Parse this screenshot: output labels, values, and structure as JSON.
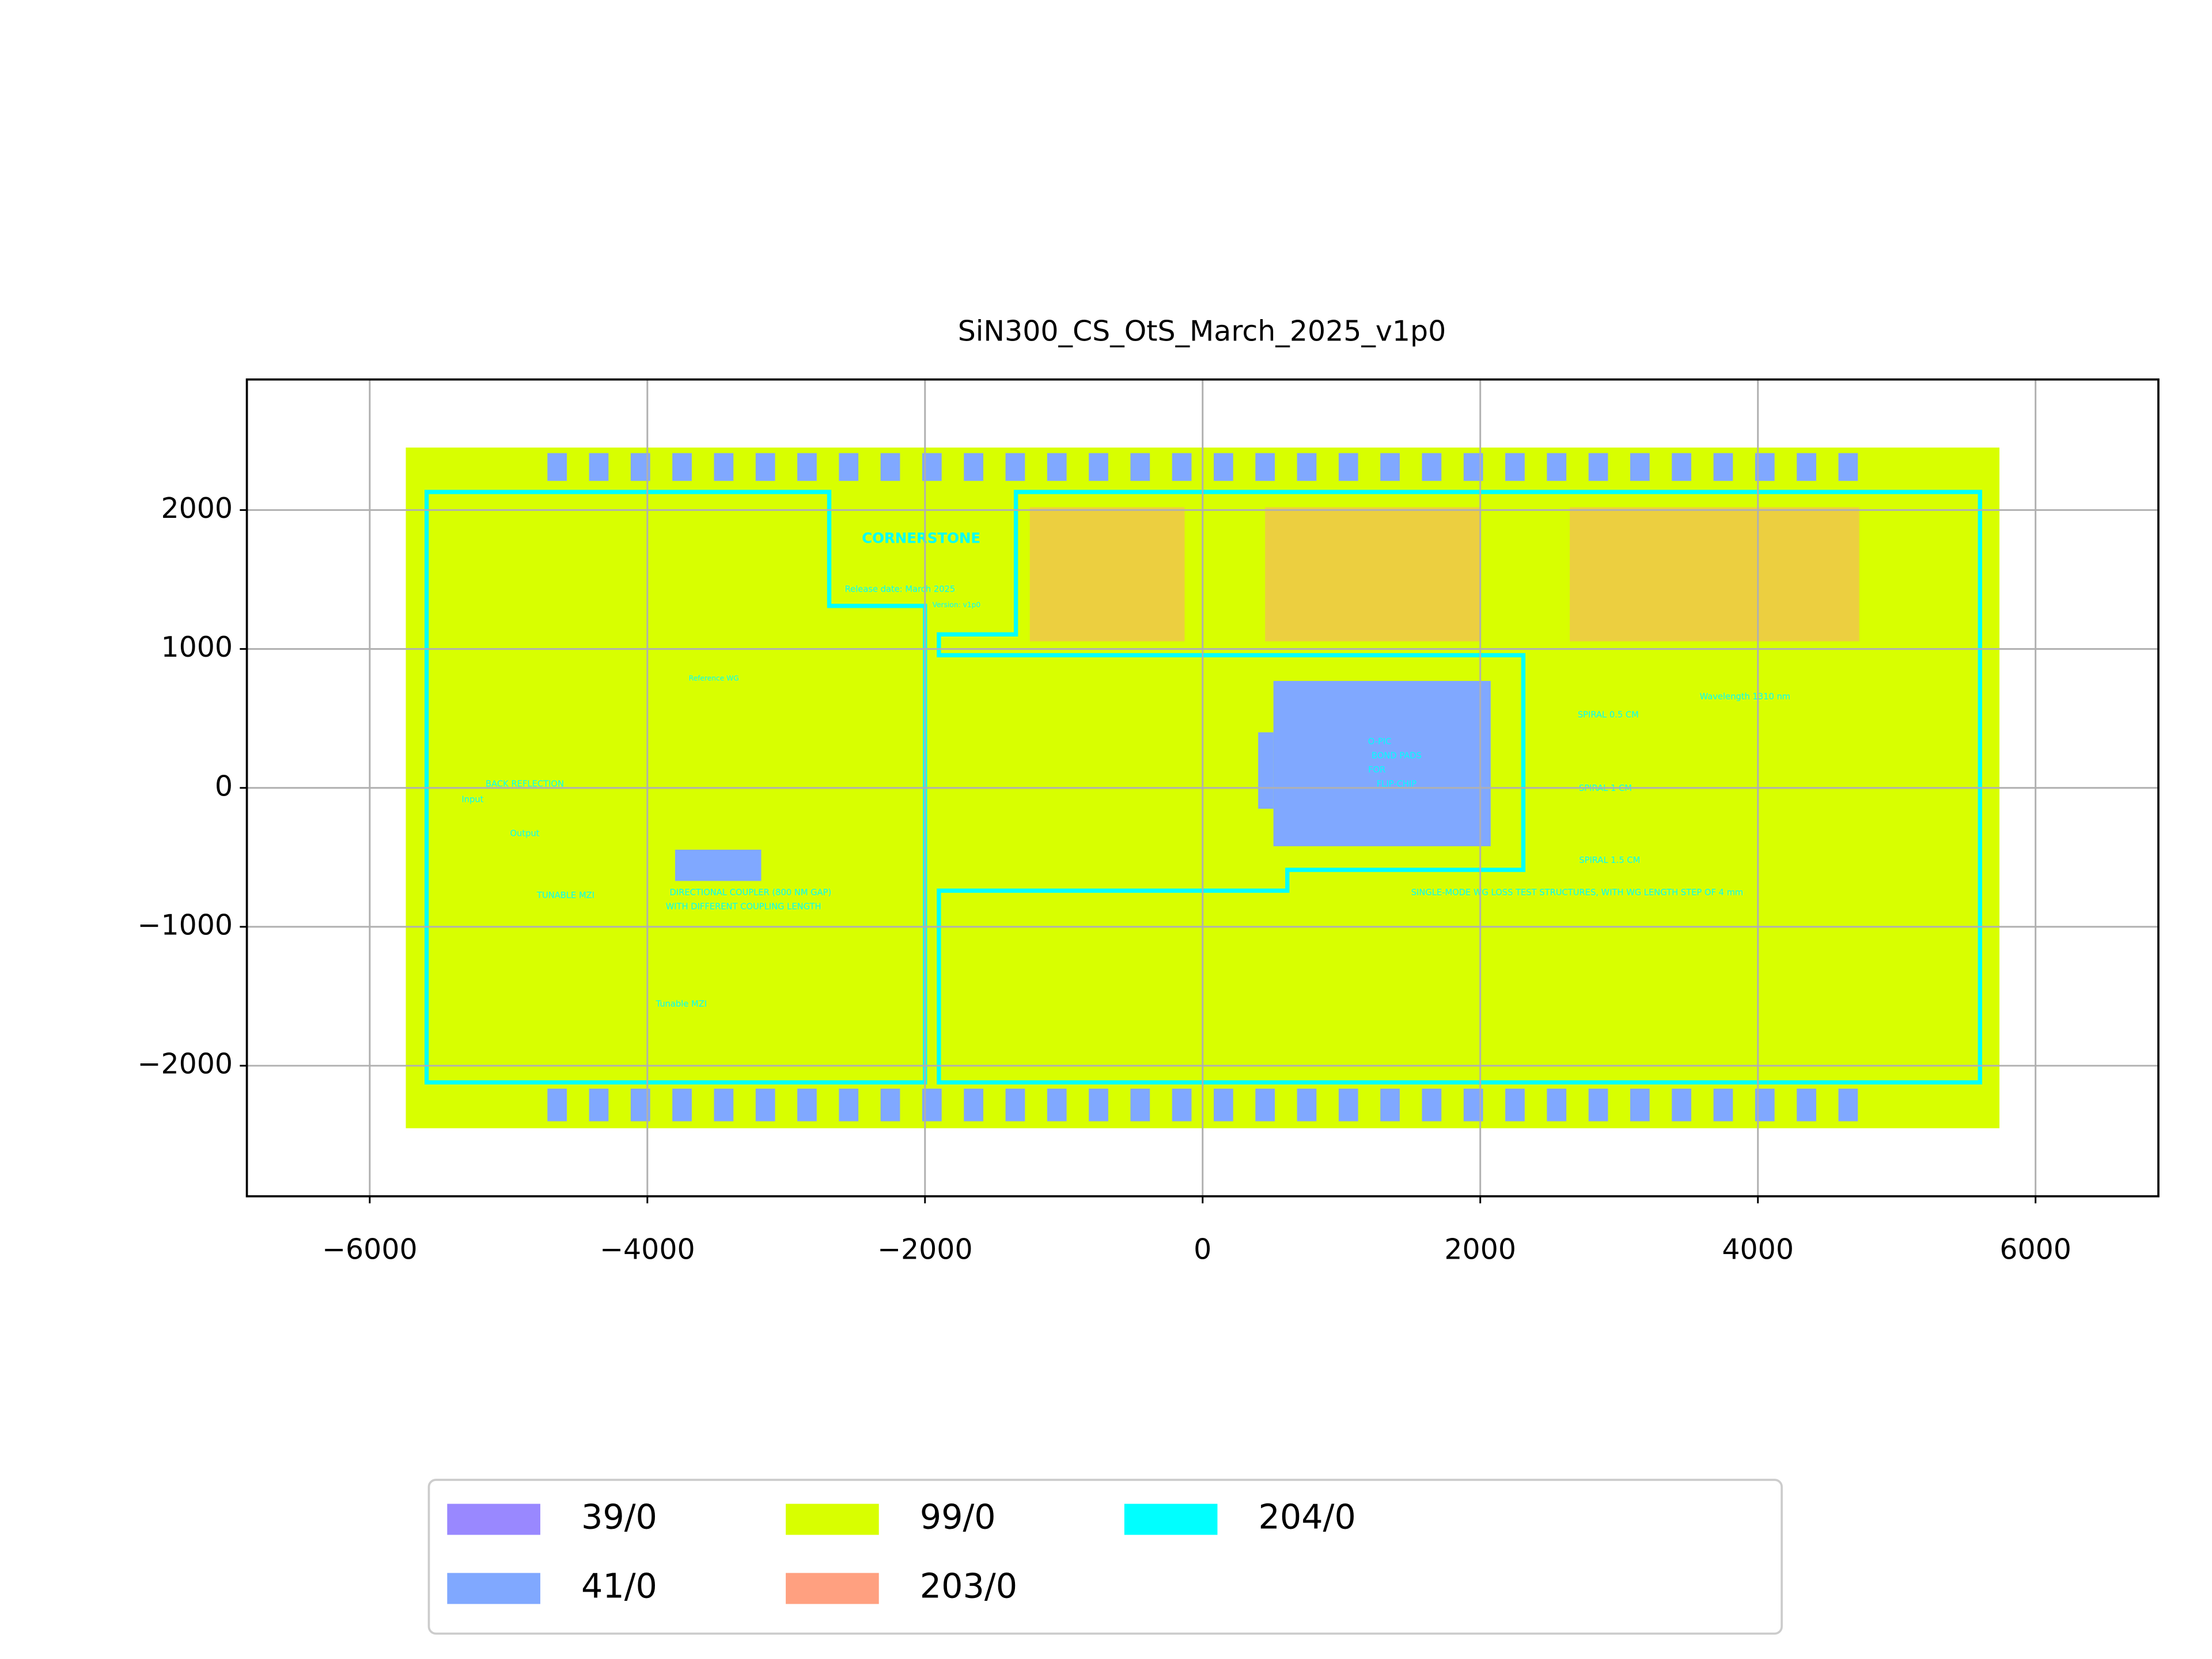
{
  "chart_data": {
    "type": "layout",
    "title": "SiN300_CS_OtS_March_2025_v1p0",
    "xlim": [
      -6885,
      6885
    ],
    "ylim": [
      -2940,
      2940
    ],
    "xticks": [
      {
        "value": -6000,
        "label": "−6000"
      },
      {
        "value": -4000,
        "label": "−4000"
      },
      {
        "value": -2000,
        "label": "−2000"
      },
      0,
      2000,
      4000,
      6000
    ],
    "yticks": [
      {
        "value": -2000,
        "label": "−2000"
      },
      {
        "value": -1000,
        "label": "−1000"
      },
      0,
      1000,
      2000
    ],
    "grid": true,
    "legend_loc": "lower center",
    "series": [
      {
        "name": "39/0",
        "color": "#9988ff"
      },
      {
        "name": "41/0",
        "color": "#80a8ff",
        "rects": [
          [
            -4720,
            2210,
            -4580,
            2410
          ],
          [
            -4420,
            2210,
            -4280,
            2410
          ],
          [
            -4120,
            2210,
            -3980,
            2410
          ],
          [
            -3820,
            2210,
            -3680,
            2410
          ],
          [
            -3520,
            2210,
            -3380,
            2410
          ],
          [
            -3220,
            2210,
            -3080,
            2410
          ],
          [
            -2920,
            2210,
            -2780,
            2410
          ],
          [
            -2620,
            2210,
            -2480,
            2410
          ],
          [
            -2320,
            2210,
            -2180,
            2410
          ],
          [
            -2020,
            2210,
            -1880,
            2410
          ],
          [
            -1720,
            2210,
            -1580,
            2410
          ],
          [
            -1420,
            2210,
            -1280,
            2410
          ],
          [
            -1120,
            2210,
            -980,
            2410
          ],
          [
            -820,
            2210,
            -680,
            2410
          ],
          [
            -520,
            2210,
            -380,
            2410
          ],
          [
            -220,
            2210,
            -80,
            2410
          ],
          [
            80,
            2210,
            220,
            2410
          ],
          [
            380,
            2210,
            520,
            2410
          ],
          [
            680,
            2210,
            820,
            2410
          ],
          [
            980,
            2210,
            1120,
            2410
          ],
          [
            1280,
            2210,
            1420,
            2410
          ],
          [
            1580,
            2210,
            1720,
            2410
          ],
          [
            1880,
            2210,
            2020,
            2410
          ],
          [
            2180,
            2210,
            2320,
            2410
          ],
          [
            2480,
            2210,
            2620,
            2410
          ],
          [
            2780,
            2210,
            2920,
            2410
          ],
          [
            3080,
            2210,
            3220,
            2410
          ],
          [
            3380,
            2210,
            3520,
            2410
          ],
          [
            3680,
            2210,
            3820,
            2410
          ],
          [
            3980,
            2210,
            4120,
            2410
          ],
          [
            4280,
            2210,
            4420,
            2410
          ],
          [
            4580,
            2210,
            4720,
            2410
          ],
          [
            -4720,
            -2400,
            -4580,
            -2165
          ],
          [
            -4420,
            -2400,
            -4280,
            -2165
          ],
          [
            -4120,
            -2400,
            -3980,
            -2165
          ],
          [
            -3820,
            -2400,
            -3680,
            -2165
          ],
          [
            -3520,
            -2400,
            -3380,
            -2165
          ],
          [
            -3220,
            -2400,
            -3080,
            -2165
          ],
          [
            -2920,
            -2400,
            -2780,
            -2165
          ],
          [
            -2620,
            -2400,
            -2480,
            -2165
          ],
          [
            -2320,
            -2400,
            -2180,
            -2165
          ],
          [
            -2020,
            -2400,
            -1880,
            -2165
          ],
          [
            -1720,
            -2400,
            -1580,
            -2165
          ],
          [
            -1420,
            -2400,
            -1280,
            -2165
          ],
          [
            -1120,
            -2400,
            -980,
            -2165
          ],
          [
            -820,
            -2400,
            -680,
            -2165
          ],
          [
            -520,
            -2400,
            -380,
            -2165
          ],
          [
            -220,
            -2400,
            -80,
            -2165
          ],
          [
            80,
            -2400,
            220,
            -2165
          ],
          [
            380,
            -2400,
            520,
            -2165
          ],
          [
            680,
            -2400,
            820,
            -2165
          ],
          [
            980,
            -2400,
            1120,
            -2165
          ],
          [
            1280,
            -2400,
            1420,
            -2165
          ],
          [
            1580,
            -2400,
            1720,
            -2165
          ],
          [
            1880,
            -2400,
            2020,
            -2165
          ],
          [
            2180,
            -2400,
            2320,
            -2165
          ],
          [
            2480,
            -2400,
            2620,
            -2165
          ],
          [
            2780,
            -2400,
            2920,
            -2165
          ],
          [
            3080,
            -2400,
            3220,
            -2165
          ],
          [
            3380,
            -2400,
            3520,
            -2165
          ],
          [
            3680,
            -2400,
            3820,
            -2165
          ],
          [
            3980,
            -2400,
            4120,
            -2165
          ],
          [
            4280,
            -2400,
            4420,
            -2165
          ],
          [
            4580,
            -2400,
            4720,
            -2165
          ],
          [
            510,
            -420,
            2075,
            770
          ],
          [
            400,
            -150,
            510,
            400
          ],
          [
            -3800,
            -670,
            -3180,
            -445
          ]
        ]
      },
      {
        "name": "99/0",
        "color": "#d8ff00",
        "rects": [
          [
            -5740,
            -2450,
            5740,
            2450
          ]
        ]
      },
      {
        "name": "203/0",
        "color": "#ffa080",
        "rects": [
          [
            -1245,
            1055,
            -130,
            2020
          ],
          [
            450,
            1055,
            2005,
            2020
          ],
          [
            2645,
            1055,
            4730,
            2020
          ]
        ]
      },
      {
        "name": "204/0",
        "color": "#00ffff",
        "polygons": [
          {
            "x": [
              -5590,
              -2690,
              -2690,
              -2000,
              -2000,
              -5590
            ],
            "y": [
              2130,
              2130,
              1310,
              1310,
              -2120,
              -2120
            ]
          },
          {
            "x": [
              -1345,
              -1345,
              -1900,
              -1900,
              2310,
              2310,
              610,
              610,
              -1900,
              -1900,
              5600,
              5600
            ],
            "y": [
              2130,
              1105,
              1105,
              955,
              955,
              -590,
              -590,
              -740,
              -740,
              -2120,
              -2120,
              2130
            ]
          }
        ]
      }
    ],
    "annotations": [
      "CORNERSTONE",
      "Release date: March 2025",
      "Version: v1p0",
      "BACK REFLECTION",
      "Input",
      "Output",
      "TUNABLE MZI",
      "DIRECTIONAL COUPLER (800 NM GAP)",
      "WITH DIFFERENT COUPLING LENGTH",
      "Tunable MZI",
      "Reference WG",
      "SPIRAL 0.5 CM",
      "SPIRAL 1 CM",
      "SPIRAL 1.5 CM",
      "SINGLE-MODE WG LOSS TEST STRUCTURES, WITH WG LENGTH STEP OF 4 mm",
      "Wavelength 1310 nm",
      "O-PIC",
      "BOND PADS",
      "FOR",
      "FLIP-CHIP"
    ]
  }
}
